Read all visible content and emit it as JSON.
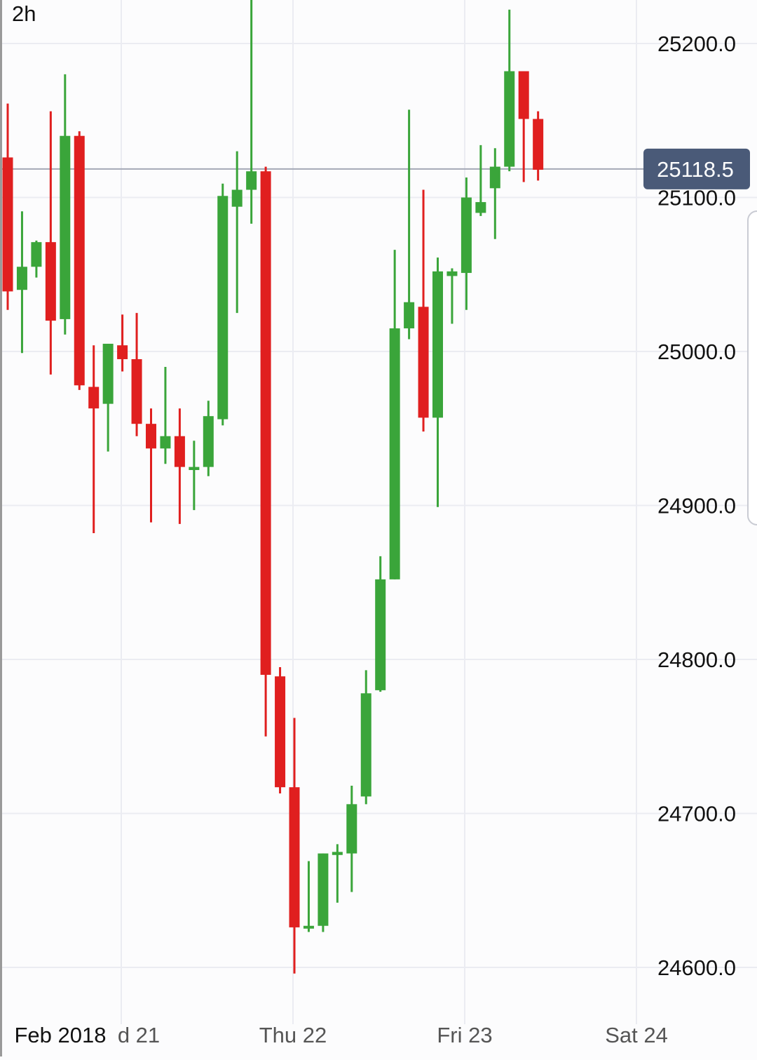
{
  "timeframe": "2h",
  "colors": {
    "up": "#3aa53a",
    "down": "#e01f1f",
    "grid": "#ebecf2",
    "current_price_line": "#a4a8b6",
    "current_price_badge": "#4a5a78",
    "axis_text": "#111111",
    "date_text": "#555555"
  },
  "chart_data": {
    "type": "candlestick",
    "interval": "2h",
    "y_axis": {
      "ticks": [
        "25200.0",
        "25100.0",
        "25000.0",
        "24900.0",
        "24800.0",
        "24700.0",
        "24600.0"
      ],
      "position": "right"
    },
    "x_axis": {
      "labels": [
        "Feb 2018",
        "d 21",
        "Thu 22",
        "Fri 23",
        "Sat 24"
      ]
    },
    "current_price": "25118.5",
    "grid": true,
    "candles": [
      {
        "o": 25126,
        "h": 25161,
        "l": 25027,
        "c": 25039
      },
      {
        "o": 25040,
        "h": 25091,
        "l": 24999,
        "c": 25055
      },
      {
        "o": 25055,
        "h": 25072,
        "l": 25048,
        "c": 25071
      },
      {
        "o": 25071,
        "h": 25156,
        "l": 24985,
        "c": 25020
      },
      {
        "o": 25021,
        "h": 25180,
        "l": 25011,
        "c": 25140
      },
      {
        "o": 25140,
        "h": 25143,
        "l": 24975,
        "c": 24978
      },
      {
        "o": 24977,
        "h": 25004,
        "l": 24882,
        "c": 24963
      },
      {
        "o": 24966,
        "h": 25005,
        "l": 24935,
        "c": 25005
      },
      {
        "o": 25004,
        "h": 25024,
        "l": 24987,
        "c": 24995
      },
      {
        "o": 24995,
        "h": 25025,
        "l": 24945,
        "c": 24953
      },
      {
        "o": 24953,
        "h": 24963,
        "l": 24889,
        "c": 24937
      },
      {
        "o": 24937,
        "h": 24990,
        "l": 24927,
        "c": 24945
      },
      {
        "o": 24945,
        "h": 24963,
        "l": 24888,
        "c": 24925
      },
      {
        "o": 24923,
        "h": 24942,
        "l": 24897,
        "c": 24925
      },
      {
        "o": 24925,
        "h": 24968,
        "l": 24919,
        "c": 24958
      },
      {
        "o": 24956,
        "h": 25109,
        "l": 24952,
        "c": 25101
      },
      {
        "o": 25094,
        "h": 25130,
        "l": 25025,
        "c": 25105
      },
      {
        "o": 25105,
        "h": 25230,
        "l": 25083,
        "c": 25117
      },
      {
        "o": 25117,
        "h": 25120,
        "l": 24750,
        "c": 24790
      },
      {
        "o": 24789,
        "h": 24795,
        "l": 24713,
        "c": 24717
      },
      {
        "o": 24717,
        "h": 24762,
        "l": 24596,
        "c": 24626
      },
      {
        "o": 24627,
        "h": 24669,
        "l": 24623,
        "c": 24627
      },
      {
        "o": 24627,
        "h": 24674,
        "l": 24623,
        "c": 24674
      },
      {
        "o": 24673,
        "h": 24680,
        "l": 24642,
        "c": 24675
      },
      {
        "o": 24674,
        "h": 24718,
        "l": 24649,
        "c": 24706
      },
      {
        "o": 24711,
        "h": 24793,
        "l": 24706,
        "c": 24778
      },
      {
        "o": 24780,
        "h": 24867,
        "l": 24779,
        "c": 24852
      },
      {
        "o": 24852,
        "h": 25066,
        "l": 24852,
        "c": 25015
      },
      {
        "o": 25015,
        "h": 25157,
        "l": 25008,
        "c": 25032
      },
      {
        "o": 25029,
        "h": 25105,
        "l": 24948,
        "c": 24957
      },
      {
        "o": 24957,
        "h": 25061,
        "l": 24899,
        "c": 25052
      },
      {
        "o": 25049,
        "h": 25054,
        "l": 25018,
        "c": 25052
      },
      {
        "o": 25051,
        "h": 25113,
        "l": 25027,
        "c": 25100
      },
      {
        "o": 25090,
        "h": 25134,
        "l": 25088,
        "c": 25097
      },
      {
        "o": 25106,
        "h": 25132,
        "l": 25073,
        "c": 25120
      },
      {
        "o": 25120,
        "h": 25222,
        "l": 25117,
        "c": 25182
      },
      {
        "o": 25182,
        "h": 25182,
        "l": 25110,
        "c": 25151
      },
      {
        "o": 25151,
        "h": 25156,
        "l": 25111,
        "c": 25118
      }
    ]
  }
}
